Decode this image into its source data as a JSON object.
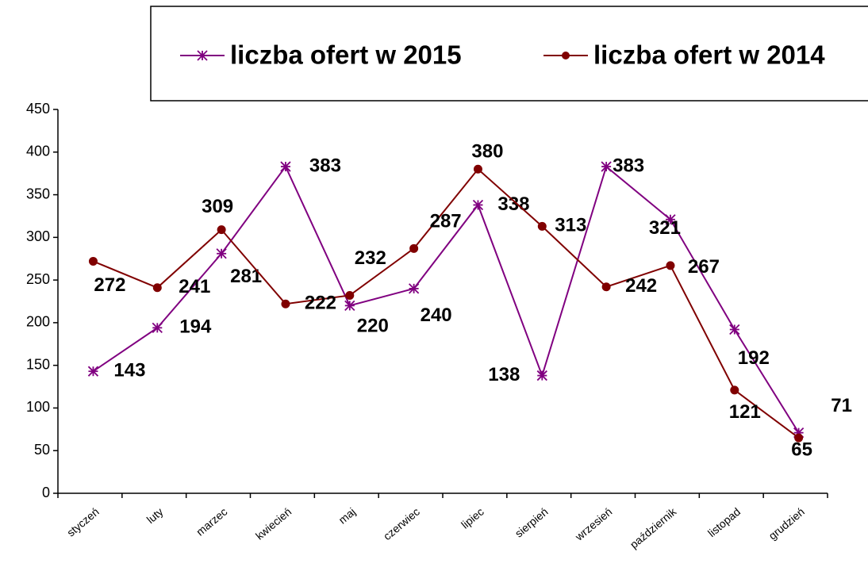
{
  "chart_data": {
    "type": "line",
    "categories": [
      "styczeń",
      "luty",
      "marzec",
      "kwiecień",
      "maj",
      "czerwiec",
      "lipiec",
      "sierpień",
      "wrzesień",
      "październik",
      "listopad",
      "grudzień"
    ],
    "series": [
      {
        "name": "liczba ofert w 2015",
        "color": "#800080",
        "marker": "star",
        "values": [
          143,
          194,
          281,
          383,
          220,
          240,
          338,
          138,
          383,
          321,
          192,
          71
        ]
      },
      {
        "name": "liczba ofert w 2014",
        "color": "#800000",
        "marker": "circle",
        "values": [
          272,
          241,
          309,
          222,
          232,
          287,
          380,
          313,
          242,
          267,
          121,
          65
        ]
      }
    ],
    "ylim": [
      0,
      450
    ],
    "yticks": [
      0,
      50,
      100,
      150,
      200,
      250,
      300,
      350,
      400,
      450
    ],
    "grid": false
  }
}
